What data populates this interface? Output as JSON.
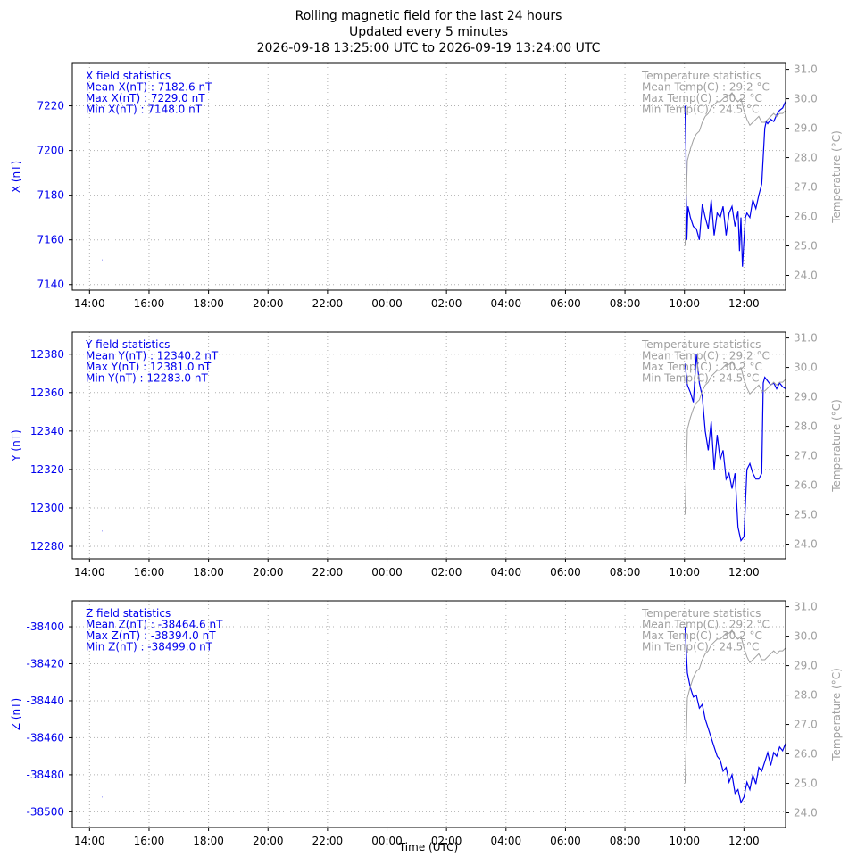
{
  "header": {
    "line1": "Rolling magnetic field for the last 24 hours",
    "line2": "Updated every 5 minutes",
    "line3": "2026-09-18 13:25:00 UTC to 2026-09-19 13:24:00 UTC"
  },
  "xlabel": "Time (UTC)",
  "colors": {
    "field": "#0000ee",
    "temp": "#a0a0a0",
    "axis": "#000000",
    "grid": "#b0b0b0"
  },
  "chart_data": [
    {
      "type": "line",
      "component": "X",
      "ylabel": "X (nT)",
      "y2label": "Temperature (°C)",
      "xlim": [
        -0.58,
        23.4
      ],
      "xticks": [
        {
          "v": 0,
          "label": "14:00"
        },
        {
          "v": 2,
          "label": "16:00"
        },
        {
          "v": 4,
          "label": "18:00"
        },
        {
          "v": 6,
          "label": "20:00"
        },
        {
          "v": 8,
          "label": "22:00"
        },
        {
          "v": 10,
          "label": "00:00"
        },
        {
          "v": 12,
          "label": "02:00"
        },
        {
          "v": 14,
          "label": "04:00"
        },
        {
          "v": 16,
          "label": "06:00"
        },
        {
          "v": 18,
          "label": "08:00"
        },
        {
          "v": 20,
          "label": "10:00"
        },
        {
          "v": 22,
          "label": "12:00"
        }
      ],
      "ylim": [
        7137.5,
        7239
      ],
      "yticks": [
        7140,
        7160,
        7180,
        7200,
        7220
      ],
      "y2lim": [
        23.5,
        31.2
      ],
      "y2ticks": [
        24.0,
        25.0,
        26.0,
        27.0,
        28.0,
        29.0,
        30.0,
        31.0
      ],
      "field_stats": [
        "X field statistics",
        "Mean X(nT) : 7182.6 nT",
        "Max X(nT) : 7229.0 nT",
        "Min X(nT) : 7148.0 nT"
      ],
      "temp_stats": [
        "Temperature statistics",
        "Mean Temp(C) : 29.2 °C",
        "Max Temp(C) : 30.2 °C",
        "Min Temp(C) : 24.5 °C"
      ],
      "series": [
        {
          "axis": "y",
          "x": [
            0.42,
            0.43
          ],
          "y": [
            7151,
            7151
          ]
        },
        {
          "axis": "y",
          "x": [
            20.02,
            20.05,
            20.08,
            20.12,
            20.2,
            20.3,
            20.4,
            20.5,
            20.6,
            20.7,
            20.8,
            20.9,
            21.0,
            21.1,
            21.2,
            21.3,
            21.4,
            21.5,
            21.6,
            21.7,
            21.8,
            21.85,
            21.9,
            21.95,
            22.0,
            22.05,
            22.1,
            22.2,
            22.3,
            22.4,
            22.5,
            22.6,
            22.7,
            22.75,
            22.8,
            22.9,
            23.0,
            23.1,
            23.2,
            23.3,
            23.4
          ],
          "y": [
            7220,
            7200,
            7160,
            7175,
            7170,
            7166,
            7165,
            7160,
            7176,
            7170,
            7165,
            7178,
            7162,
            7172,
            7170,
            7175,
            7162,
            7172,
            7175,
            7166,
            7173,
            7155,
            7170,
            7148,
            7160,
            7170,
            7172,
            7170,
            7178,
            7174,
            7180,
            7185,
            7210,
            7213,
            7212,
            7214,
            7213,
            7216,
            7218,
            7219,
            7222
          ]
        },
        {
          "axis": "y2",
          "x": [
            20.02,
            20.1,
            20.2,
            20.3,
            20.4,
            20.5,
            20.6,
            20.7,
            20.8,
            20.9,
            21.0,
            21.1,
            21.2,
            21.3,
            21.4,
            21.5,
            21.6,
            21.7,
            21.8,
            21.9,
            22.0,
            22.1,
            22.2,
            22.3,
            22.4,
            22.5,
            22.6,
            22.7,
            22.8,
            22.9,
            23.0,
            23.1,
            23.2,
            23.3,
            23.4
          ],
          "y": [
            25.0,
            27.9,
            28.3,
            28.6,
            28.8,
            28.9,
            29.2,
            29.4,
            29.5,
            29.7,
            29.8,
            29.9,
            29.9,
            30.0,
            30.1,
            30.1,
            30.2,
            30.0,
            29.9,
            30.0,
            29.6,
            29.3,
            29.1,
            29.2,
            29.3,
            29.4,
            29.2,
            29.2,
            29.3,
            29.4,
            29.5,
            29.4,
            29.5,
            29.5,
            29.6
          ]
        }
      ]
    },
    {
      "type": "line",
      "component": "Y",
      "ylabel": "Y (nT)",
      "y2label": "Temperature (°C)",
      "xlim": [
        -0.58,
        23.4
      ],
      "xticks": [
        {
          "v": 0,
          "label": "14:00"
        },
        {
          "v": 2,
          "label": "16:00"
        },
        {
          "v": 4,
          "label": "18:00"
        },
        {
          "v": 6,
          "label": "20:00"
        },
        {
          "v": 8,
          "label": "22:00"
        },
        {
          "v": 10,
          "label": "00:00"
        },
        {
          "v": 12,
          "label": "02:00"
        },
        {
          "v": 14,
          "label": "04:00"
        },
        {
          "v": 16,
          "label": "06:00"
        },
        {
          "v": 18,
          "label": "08:00"
        },
        {
          "v": 20,
          "label": "10:00"
        },
        {
          "v": 22,
          "label": "12:00"
        }
      ],
      "ylim": [
        12273.5,
        12391.5
      ],
      "yticks": [
        12280,
        12300,
        12320,
        12340,
        12360,
        12380
      ],
      "y2lim": [
        23.5,
        31.2
      ],
      "y2ticks": [
        24.0,
        25.0,
        26.0,
        27.0,
        28.0,
        29.0,
        30.0,
        31.0
      ],
      "field_stats": [
        "Y field statistics",
        "Mean Y(nT) : 12340.2 nT",
        "Max Y(nT) : 12381.0 nT",
        "Min Y(nT) : 12283.0 nT"
      ],
      "temp_stats": [
        "Temperature statistics",
        "Mean Temp(C) : 29.2 °C",
        "Max Temp(C) : 30.2 °C",
        "Min Temp(C) : 24.5 °C"
      ],
      "series": [
        {
          "axis": "y",
          "x": [
            0.42,
            0.43
          ],
          "y": [
            12288,
            12288
          ]
        },
        {
          "axis": "y",
          "x": [
            20.02,
            20.1,
            20.2,
            20.3,
            20.4,
            20.5,
            20.6,
            20.7,
            20.8,
            20.9,
            21.0,
            21.1,
            21.2,
            21.3,
            21.4,
            21.5,
            21.6,
            21.7,
            21.8,
            21.9,
            22.0,
            22.1,
            22.2,
            22.3,
            22.4,
            22.5,
            22.6,
            22.65,
            22.7,
            22.8,
            22.9,
            23.0,
            23.1,
            23.2,
            23.3,
            23.4
          ],
          "y": [
            12375,
            12364,
            12360,
            12355,
            12380,
            12365,
            12358,
            12340,
            12330,
            12345,
            12320,
            12338,
            12325,
            12330,
            12315,
            12318,
            12310,
            12318,
            12290,
            12283,
            12285,
            12320,
            12323,
            12318,
            12315,
            12315,
            12318,
            12365,
            12368,
            12366,
            12364,
            12365,
            12362,
            12365,
            12363,
            12362
          ]
        },
        {
          "axis": "y2",
          "x": [
            20.02,
            20.1,
            20.2,
            20.3,
            20.4,
            20.5,
            20.6,
            20.7,
            20.8,
            20.9,
            21.0,
            21.1,
            21.2,
            21.3,
            21.4,
            21.5,
            21.6,
            21.7,
            21.8,
            21.9,
            22.0,
            22.1,
            22.2,
            22.3,
            22.4,
            22.5,
            22.6,
            22.7,
            22.8,
            22.9,
            23.0,
            23.1,
            23.2,
            23.3,
            23.4
          ],
          "y": [
            25.0,
            27.9,
            28.3,
            28.6,
            28.8,
            28.9,
            29.2,
            29.4,
            29.5,
            29.7,
            29.8,
            29.9,
            29.9,
            30.0,
            30.1,
            30.1,
            30.2,
            30.0,
            29.9,
            30.0,
            29.6,
            29.3,
            29.1,
            29.2,
            29.3,
            29.4,
            29.2,
            29.2,
            29.3,
            29.4,
            29.5,
            29.4,
            29.5,
            29.5,
            29.6
          ]
        }
      ]
    },
    {
      "type": "line",
      "component": "Z",
      "ylabel": "Z (nT)",
      "y2label": "Temperature (°C)",
      "xlim": [
        -0.58,
        23.4
      ],
      "xticks": [
        {
          "v": 0,
          "label": "14:00"
        },
        {
          "v": 2,
          "label": "16:00"
        },
        {
          "v": 4,
          "label": "18:00"
        },
        {
          "v": 6,
          "label": "20:00"
        },
        {
          "v": 8,
          "label": "22:00"
        },
        {
          "v": 10,
          "label": "00:00"
        },
        {
          "v": 12,
          "label": "02:00"
        },
        {
          "v": 14,
          "label": "04:00"
        },
        {
          "v": 16,
          "label": "06:00"
        },
        {
          "v": 18,
          "label": "08:00"
        },
        {
          "v": 20,
          "label": "10:00"
        },
        {
          "v": 22,
          "label": "12:00"
        }
      ],
      "ylim": [
        -38508.5,
        -38386
      ],
      "yticks": [
        -38500,
        -38480,
        -38460,
        -38440,
        -38420,
        -38400
      ],
      "y2lim": [
        23.5,
        31.2
      ],
      "y2ticks": [
        24.0,
        25.0,
        26.0,
        27.0,
        28.0,
        29.0,
        30.0,
        31.0
      ],
      "field_stats": [
        "Z field statistics",
        "Mean Z(nT) : -38464.6 nT",
        "Max Z(nT) : -38394.0 nT",
        "Min Z(nT) : -38499.0 nT"
      ],
      "temp_stats": [
        "Temperature statistics",
        "Mean Temp(C) : 29.2 °C",
        "Max Temp(C) : 30.2 °C",
        "Min Temp(C) : 24.5 °C"
      ],
      "series": [
        {
          "axis": "y",
          "x": [
            0.42,
            0.43
          ],
          "y": [
            -38492,
            -38492
          ]
        },
        {
          "axis": "y",
          "x": [
            20.02,
            20.1,
            20.2,
            20.3,
            20.4,
            20.5,
            20.6,
            20.7,
            20.8,
            20.9,
            21.0,
            21.1,
            21.2,
            21.3,
            21.4,
            21.5,
            21.6,
            21.7,
            21.8,
            21.9,
            22.0,
            22.1,
            22.2,
            22.3,
            22.4,
            22.5,
            22.6,
            22.7,
            22.8,
            22.9,
            23.0,
            23.1,
            23.2,
            23.3,
            23.4
          ],
          "y": [
            -38400,
            -38425,
            -38433,
            -38438,
            -38437,
            -38444,
            -38442,
            -38450,
            -38455,
            -38460,
            -38465,
            -38470,
            -38472,
            -38478,
            -38476,
            -38484,
            -38480,
            -38490,
            -38488,
            -38495,
            -38492,
            -38484,
            -38488,
            -38480,
            -38485,
            -38476,
            -38478,
            -38473,
            -38468,
            -38475,
            -38468,
            -38470,
            -38465,
            -38467,
            -38463
          ]
        },
        {
          "axis": "y2",
          "x": [
            20.02,
            20.1,
            20.2,
            20.3,
            20.4,
            20.5,
            20.6,
            20.7,
            20.8,
            20.9,
            21.0,
            21.1,
            21.2,
            21.3,
            21.4,
            21.5,
            21.6,
            21.7,
            21.8,
            21.9,
            22.0,
            22.1,
            22.2,
            22.3,
            22.4,
            22.5,
            22.6,
            22.7,
            22.8,
            22.9,
            23.0,
            23.1,
            23.2,
            23.3,
            23.4
          ],
          "y": [
            25.0,
            27.9,
            28.3,
            28.6,
            28.8,
            28.9,
            29.2,
            29.4,
            29.5,
            29.7,
            29.8,
            29.9,
            29.9,
            30.0,
            30.1,
            30.1,
            30.2,
            30.0,
            29.9,
            30.0,
            29.6,
            29.3,
            29.1,
            29.2,
            29.3,
            29.4,
            29.2,
            29.2,
            29.3,
            29.4,
            29.5,
            29.4,
            29.5,
            29.5,
            29.6
          ]
        }
      ]
    }
  ]
}
